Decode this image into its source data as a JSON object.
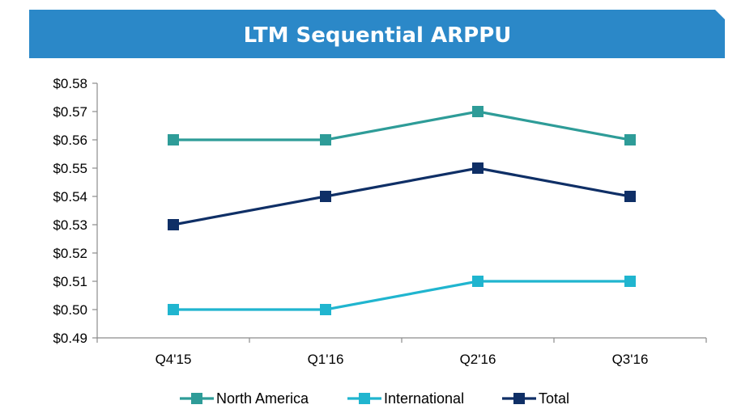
{
  "chart_data": {
    "type": "line",
    "title": "LTM Sequential ARPPU",
    "categories": [
      "Q4'15",
      "Q1'16",
      "Q2'16",
      "Q3'16"
    ],
    "ylim": [
      0.49,
      0.58
    ],
    "y_ticks": [
      "$0.49",
      "$0.50",
      "$0.51",
      "$0.52",
      "$0.53",
      "$0.54",
      "$0.55",
      "$0.56",
      "$0.57",
      "$0.58"
    ],
    "grid": false,
    "legend_position": "bottom",
    "series": [
      {
        "name": "North America",
        "values": [
          0.56,
          0.56,
          0.57,
          0.56
        ],
        "color": "#2e9c98"
      },
      {
        "name": "International",
        "values": [
          0.5,
          0.5,
          0.51,
          0.51
        ],
        "color": "#20b5cf"
      },
      {
        "name": "Total",
        "values": [
          0.53,
          0.54,
          0.55,
          0.54
        ],
        "color": "#0f2f66"
      }
    ]
  },
  "colors": {
    "banner": "#2b88c8",
    "axis": "#8c8c8c"
  }
}
